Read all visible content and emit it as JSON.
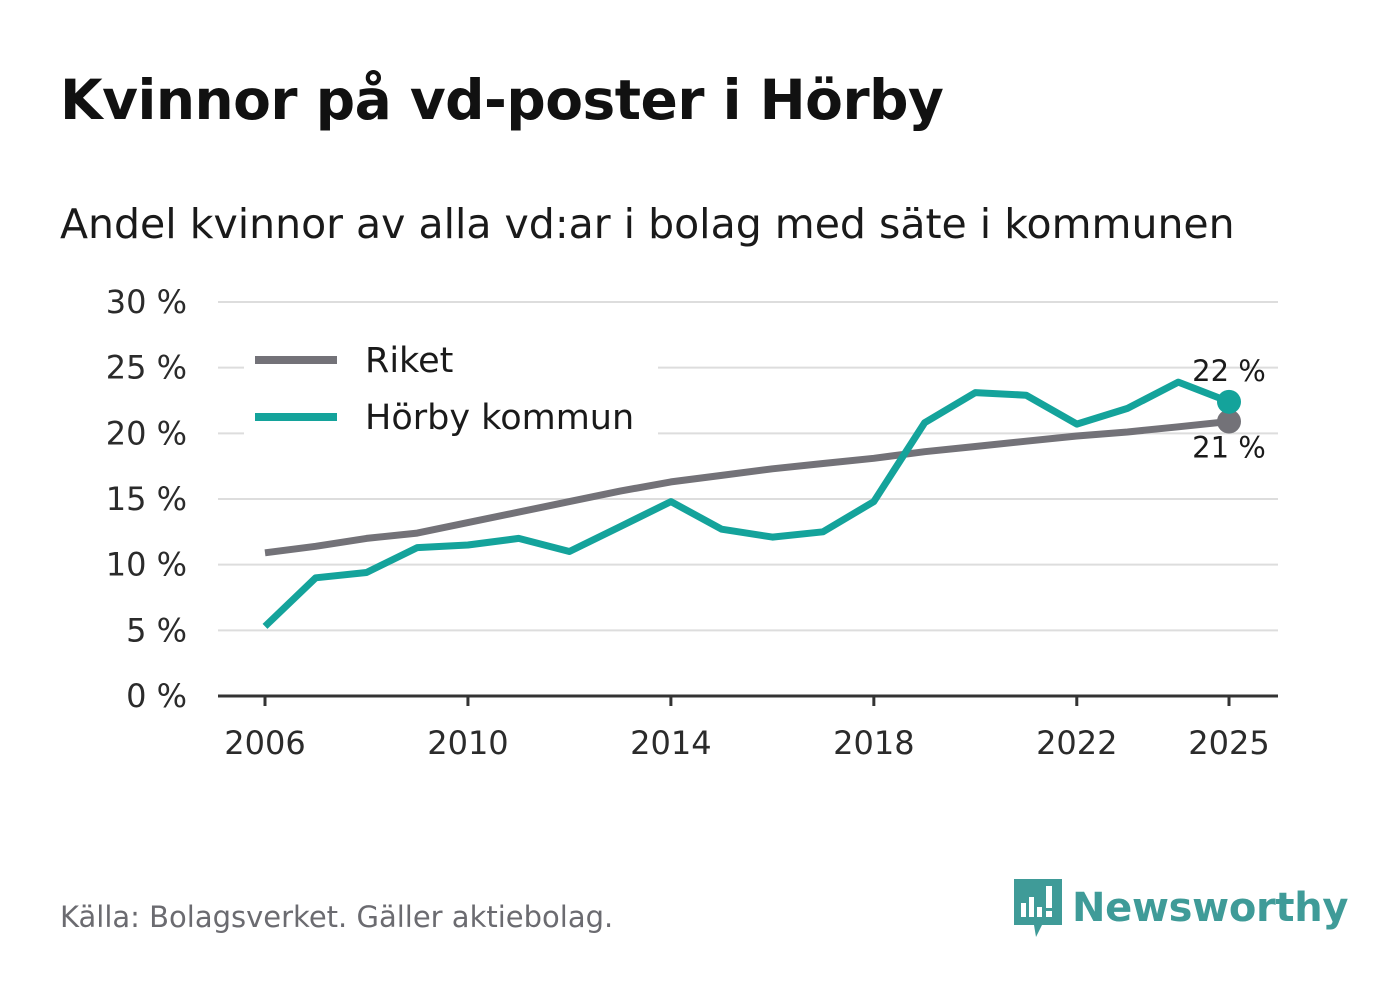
{
  "chart_data": {
    "type": "line",
    "title": "Kvinnor på vd-poster i Hörby",
    "subtitle": "Andel kvinnor av alla vd:ar i bolag med säte i kommunen",
    "xlabel": "",
    "ylabel": "",
    "xlim": [
      2006,
      2025
    ],
    "ylim": [
      0,
      30
    ],
    "yticks": [
      0,
      5,
      10,
      15,
      20,
      25,
      30
    ],
    "ytick_labels": [
      "0 %",
      "5 %",
      "10 %",
      "15 %",
      "20 %",
      "25 %",
      "30 %"
    ],
    "xticks": [
      2006,
      2010,
      2014,
      2018,
      2022,
      2025
    ],
    "xtick_labels": [
      "2006",
      "2010",
      "2014",
      "2018",
      "2022",
      "2025"
    ],
    "grid": true,
    "legend_position": "top-left",
    "x": [
      2006,
      2007,
      2008,
      2009,
      2010,
      2011,
      2012,
      2013,
      2014,
      2015,
      2016,
      2017,
      2018,
      2019,
      2020,
      2021,
      2022,
      2023,
      2024,
      2025
    ],
    "series": [
      {
        "name": "Riket",
        "color": "#737278",
        "values": [
          10.9,
          11.4,
          12.0,
          12.4,
          13.2,
          14.0,
          14.8,
          15.6,
          16.3,
          16.8,
          17.3,
          17.7,
          18.1,
          18.6,
          19.0,
          19.4,
          19.8,
          20.1,
          20.5,
          20.9
        ],
        "end_label": "21 %"
      },
      {
        "name": "Hörby kommun",
        "color": "#14a39b",
        "values": [
          5.3,
          9.0,
          9.4,
          11.3,
          11.5,
          12.0,
          11.0,
          12.9,
          14.8,
          12.7,
          12.1,
          12.5,
          14.8,
          20.8,
          23.1,
          22.9,
          20.7,
          21.9,
          23.9,
          22.4
        ],
        "end_label": "22 %"
      }
    ]
  },
  "footer": {
    "source": "Källa: Bolagsverket. Gäller aktiebolag.",
    "brand": "Newsworthy",
    "brand_color": "#3f9b98"
  }
}
